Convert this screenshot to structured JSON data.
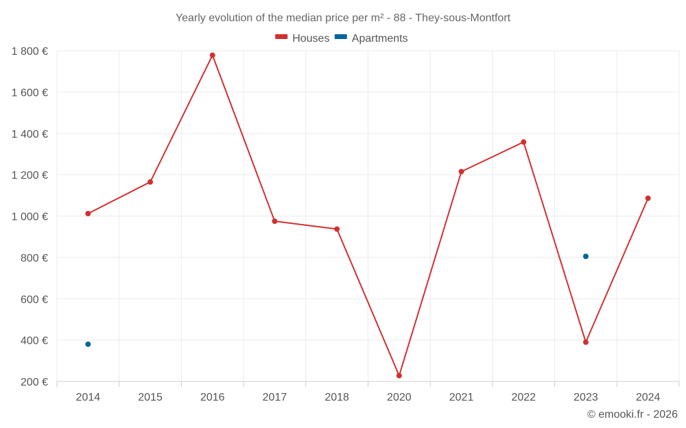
{
  "chart_data": {
    "type": "line",
    "title": "Yearly evolution of the median price per m² - 88 - They-sous-Montfort",
    "categories": [
      "2014",
      "2015",
      "2016",
      "2017",
      "2018",
      "2020",
      "2021",
      "2022",
      "2023",
      "2024"
    ],
    "series": [
      {
        "name": "Houses",
        "color": "#d32f2f",
        "values": [
          1012,
          1165,
          1778,
          975,
          937,
          228,
          1215,
          1358,
          390,
          1086
        ]
      },
      {
        "name": "Apartments",
        "color": "#006699",
        "values": [
          380,
          null,
          null,
          null,
          null,
          null,
          null,
          null,
          805,
          null
        ]
      }
    ],
    "ylim": [
      200,
      1800
    ],
    "yticks": [
      200,
      400,
      600,
      800,
      1000,
      1200,
      1400,
      1600,
      1800
    ],
    "ytick_labels": [
      "200 €",
      "400 €",
      "600 €",
      "800 €",
      "1 000 €",
      "1 200 €",
      "1 400 €",
      "1 600 €",
      "1 800 €"
    ],
    "grid": true,
    "legend_position": "top-center",
    "credit": "© emooki.fr - 2026"
  }
}
